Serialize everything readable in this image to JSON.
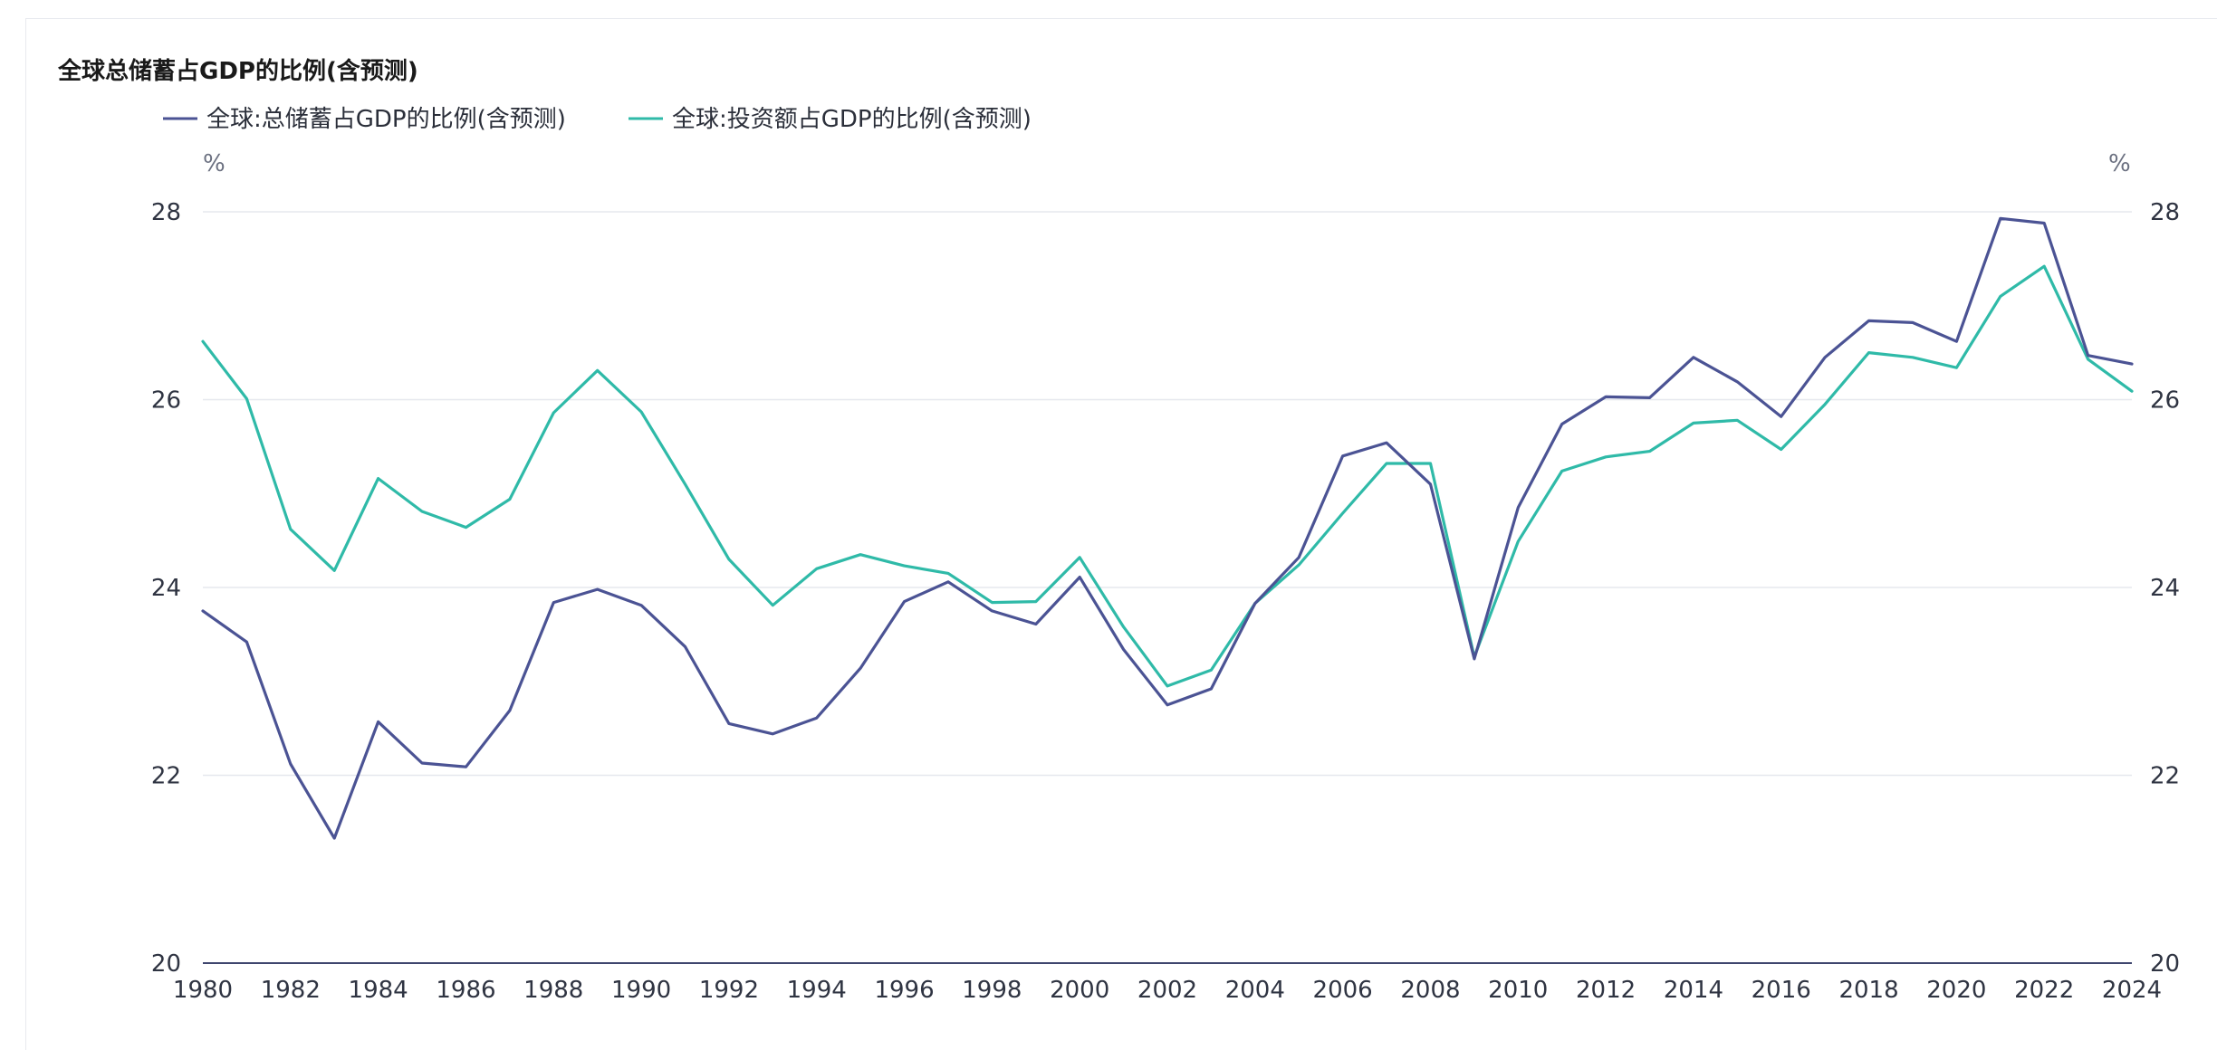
{
  "chart_data": {
    "type": "line",
    "title": "全球总储蓄占GDP的比例(含预测)",
    "y_unit_left": "%",
    "y_unit_right": "%",
    "ylim": [
      20,
      28
    ],
    "y_ticks": [
      "20",
      "22",
      "24",
      "26",
      "28"
    ],
    "x_tick_labels": [
      "1980",
      "1982",
      "1984",
      "1986",
      "1988",
      "1990",
      "1992",
      "1994",
      "1996",
      "1998",
      "2000",
      "2002",
      "2004",
      "2006",
      "2008",
      "2010",
      "2012",
      "2014",
      "2016",
      "2018",
      "2020",
      "2022",
      "2024"
    ],
    "x": [
      1980,
      1981,
      1982,
      1983,
      1984,
      1985,
      1986,
      1987,
      1988,
      1989,
      1990,
      1991,
      1992,
      1993,
      1994,
      1995,
      1996,
      1997,
      1998,
      1999,
      2000,
      2001,
      2002,
      2003,
      2004,
      2005,
      2006,
      2007,
      2008,
      2009,
      2010,
      2011,
      2012,
      2013,
      2014,
      2015,
      2016,
      2017,
      2018,
      2019,
      2020,
      2021,
      2022,
      2023,
      2024
    ],
    "grid": true,
    "legend_position": "top-left",
    "series": [
      {
        "name": "全球:总储蓄占GDP的比例(含预测)",
        "color": "#4b5394",
        "values": [
          23.75,
          23.42,
          22.12,
          21.33,
          22.57,
          22.13,
          22.09,
          22.69,
          23.84,
          23.98,
          23.81,
          23.37,
          22.55,
          22.44,
          22.61,
          23.14,
          23.85,
          24.06,
          23.75,
          23.61,
          24.11,
          23.34,
          22.75,
          22.92,
          23.83,
          24.32,
          25.4,
          25.54,
          25.1,
          23.24,
          24.85,
          25.74,
          26.03,
          26.02,
          26.45,
          26.19,
          25.82,
          26.45,
          26.84,
          26.82,
          26.62,
          27.93,
          27.88,
          26.47,
          26.38
        ]
      },
      {
        "name": "全球:投资额占GDP的比例(含预测)",
        "color": "#2fbaa8",
        "values": [
          26.62,
          26.01,
          24.62,
          24.18,
          25.16,
          24.81,
          24.64,
          24.94,
          25.86,
          26.31,
          25.87,
          25.1,
          24.3,
          23.81,
          24.2,
          24.35,
          24.23,
          24.15,
          23.84,
          23.85,
          24.32,
          23.58,
          22.95,
          23.12,
          23.83,
          24.24,
          24.79,
          25.32,
          25.32,
          23.26,
          24.49,
          25.24,
          25.39,
          25.45,
          25.75,
          25.78,
          25.47,
          25.95,
          26.5,
          26.45,
          26.34,
          27.1,
          27.42,
          26.43,
          26.09
        ]
      }
    ]
  }
}
